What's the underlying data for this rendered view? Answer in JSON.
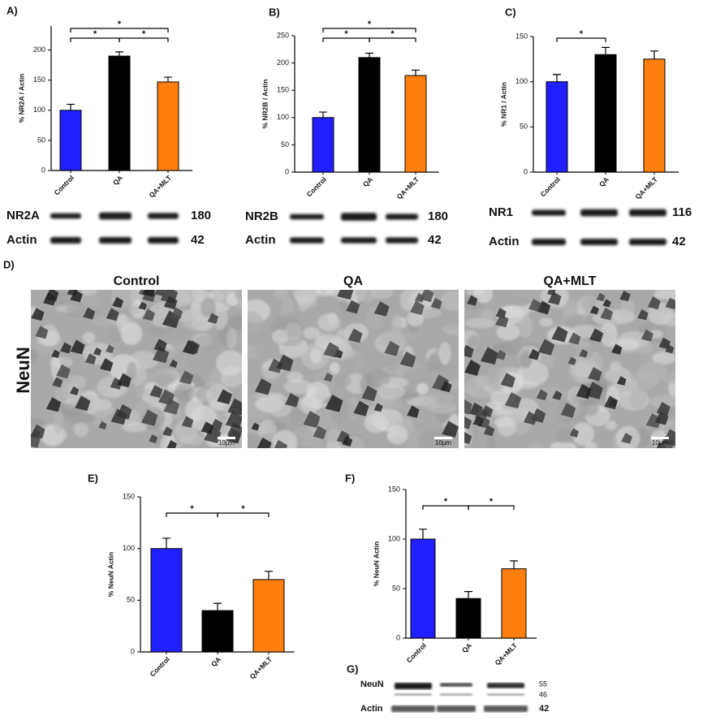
{
  "chart_data": [
    {
      "type": "bar",
      "label": "A)",
      "ylabel": "% NR2A / Actin",
      "categories": [
        "Control",
        "QA",
        "QA+MLT"
      ],
      "series": [
        {
          "values": [
            100,
            190,
            147
          ],
          "errors": [
            10,
            7,
            8
          ],
          "colors": [
            "#1f1fff",
            "#000000",
            "#ff7f0e"
          ]
        }
      ],
      "annotations": [
        "*",
        "*",
        "*"
      ],
      "ylim": [
        0,
        240
      ],
      "yticks": [
        0,
        50,
        100,
        150,
        200
      ]
    },
    {
      "type": "bar",
      "label": "B)",
      "ylabel": "% NR2B / Actin",
      "categories": [
        "Control",
        "QA",
        "QA+MLT"
      ],
      "series": [
        {
          "values": [
            100,
            210,
            177
          ],
          "errors": [
            10,
            8,
            10
          ],
          "colors": [
            "#1f1fff",
            "#000000",
            "#ff7f0e"
          ]
        }
      ],
      "annotations": [
        "*",
        "*",
        "*"
      ],
      "ylim": [
        0,
        250
      ],
      "yticks": [
        0,
        50,
        100,
        150,
        200,
        250
      ]
    },
    {
      "type": "bar",
      "label": "C)",
      "ylabel": "% NR1 / Actin",
      "categories": [
        "Control",
        "QA",
        "QA+MLT"
      ],
      "series": [
        {
          "values": [
            100,
            130,
            125
          ],
          "errors": [
            8,
            8,
            9
          ],
          "colors": [
            "#1f1fff",
            "#000000",
            "#ff7f0e"
          ]
        }
      ],
      "annotations": [
        "*"
      ],
      "ylim": [
        0,
        150
      ],
      "yticks": [
        0,
        50,
        100,
        150
      ]
    },
    {
      "type": "bar",
      "label": "E)",
      "ylabel": "% NeuN Actin",
      "categories": [
        "Control",
        "QA",
        "QA+MLT"
      ],
      "series": [
        {
          "values": [
            100,
            40,
            70
          ],
          "errors": [
            10,
            7,
            8
          ],
          "colors": [
            "#1f1fff",
            "#000000",
            "#ff7f0e"
          ]
        }
      ],
      "annotations": [
        "*",
        "*"
      ],
      "ylim": [
        0,
        150
      ],
      "yticks": [
        0,
        50,
        100,
        150
      ]
    },
    {
      "type": "bar",
      "label": "F)",
      "ylabel": "% NeuN Actin",
      "categories": [
        "Control",
        "QA",
        "QA+MLT"
      ],
      "series": [
        {
          "values": [
            100,
            40,
            70
          ],
          "errors": [
            10,
            7,
            8
          ],
          "colors": [
            "#1f1fff",
            "#000000",
            "#ff7f0e"
          ]
        }
      ],
      "annotations": [
        "*",
        "*"
      ],
      "ylim": [
        0,
        150
      ],
      "yticks": [
        0,
        50,
        100,
        150
      ]
    }
  ],
  "blots": [
    [
      {
        "name": "NR2A",
        "size": "180"
      },
      {
        "name": "Actin",
        "size": "42"
      }
    ],
    [
      {
        "name": "NR2B",
        "size": "180"
      },
      {
        "name": "Actin",
        "size": "42"
      }
    ],
    [
      {
        "name": "NR1",
        "size": "116"
      },
      {
        "name": "Actin",
        "size": "42"
      }
    ]
  ],
  "micrographs": {
    "label": "D)",
    "stain": "NeuN",
    "panels": [
      {
        "title": "Control",
        "scale": "10µm"
      },
      {
        "title": "QA",
        "scale": "10µm"
      },
      {
        "title": "QA+MLT",
        "scale": "10µm"
      }
    ]
  },
  "blot_g": {
    "label": "G)",
    "rows": [
      {
        "name": "NeuN",
        "sizes": [
          "55",
          "46"
        ]
      },
      {
        "name": "Actin",
        "sizes": [
          "42"
        ]
      }
    ]
  }
}
